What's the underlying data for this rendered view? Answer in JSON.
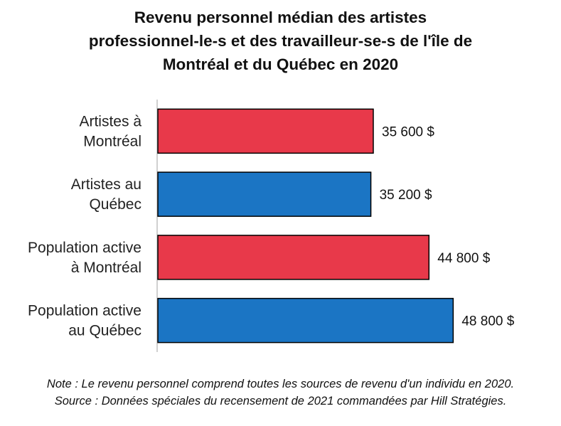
{
  "chart_data": {
    "type": "bar",
    "orientation": "horizontal",
    "title_lines": [
      "Revenu personnel médian des artistes",
      "professionnel-le-s et des travailleur-se-s de l'île de",
      "Montréal et du Québec en 2020"
    ],
    "categories": [
      [
        "Artistes à",
        "Montréal"
      ],
      [
        "Artistes au",
        "Québec"
      ],
      [
        "Population active",
        "à Montréal"
      ],
      [
        "Population active",
        "au Québec"
      ]
    ],
    "values": [
      35600,
      35200,
      44800,
      48800
    ],
    "value_labels": [
      "35 600 $",
      "35 200 $",
      "44 800 $",
      "48 800 $"
    ],
    "bar_colors": [
      "#E8394A",
      "#1B75C4",
      "#E8394A",
      "#1B75C4"
    ],
    "xlim": [
      0,
      60000
    ],
    "x_axis_visible": false,
    "grid": false,
    "legend": "none"
  },
  "notes": {
    "note": "Note : Le revenu personnel comprend toutes les sources de revenu d'un individu en 2020.",
    "source": "Source : Données spéciales du recensement de 2021 commandées par Hill Stratégies."
  },
  "colors": {
    "axis": "#D0D0D0",
    "bar_outline": "#000000"
  }
}
